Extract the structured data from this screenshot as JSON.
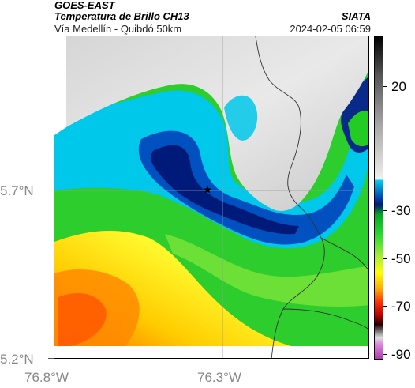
{
  "header": {
    "title": "GOES-EAST",
    "subtitle": "Temperatura de Brillo CH13",
    "location": "Vía Medellín - Quibdó 50km",
    "organization": "SIATA",
    "datetime": "2024-02-05 06:59"
  },
  "axes": {
    "latitude_labels": [
      "5.7°N",
      "5.2°N"
    ],
    "longitude_labels": [
      "76.8°W",
      "76.3°W"
    ]
  },
  "colorbar": {
    "tick_labels": [
      "20",
      "-30",
      "-50",
      "-70",
      "-90"
    ]
  },
  "map": {
    "marker_icon": "star-icon",
    "colors": {
      "warm_cloud": "#ff6a00",
      "mid_cloud": "#ffff00",
      "cold_green": "#22cc22",
      "cyan_edge": "#00ccee",
      "deep_blue": "#001a7a",
      "clear_gray": "#e0e0e0"
    }
  }
}
